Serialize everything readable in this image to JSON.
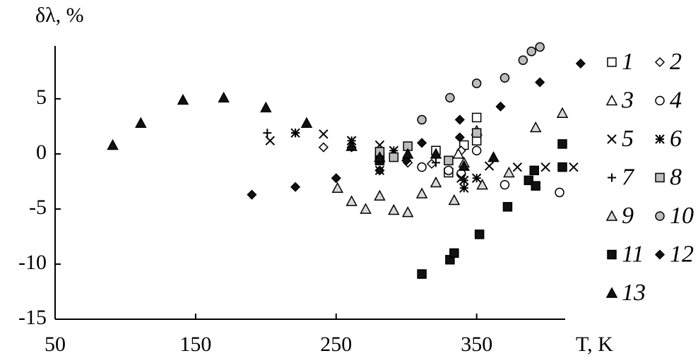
{
  "chart_data": {
    "type": "scatter",
    "ylabel": "δλ, %",
    "xlabel": "T, K",
    "xlim": [
      50,
      413
    ],
    "ylim": [
      -15,
      9.8
    ],
    "xticks": [
      50,
      150,
      250,
      350
    ],
    "yticks": [
      -15,
      -10,
      -5,
      0,
      5
    ],
    "legend": "right",
    "series": [
      {
        "name": "1",
        "marker": "square",
        "color": "#ffffff",
        "x": [
          281,
          321,
          330,
          341,
          350,
          350
        ],
        "values": [
          -0.3,
          0.3,
          -1.7,
          0.8,
          3.3,
          1.2
        ]
      },
      {
        "name": "2",
        "marker": "diamond",
        "color": "#ffffff",
        "x": [
          241,
          301,
          318,
          339
        ],
        "values": [
          0.6,
          -0.8,
          -0.9,
          0.3
        ]
      },
      {
        "name": "3",
        "marker": "triangle",
        "color": "#ffffff",
        "x": [
          337,
          341,
          350
        ],
        "values": [
          0,
          -0.8,
          2.1
        ]
      },
      {
        "name": "4",
        "marker": "circle",
        "color": "#ffffff",
        "x": [
          311,
          330,
          339,
          350,
          370,
          409
        ],
        "values": [
          -1.2,
          -1.5,
          -1.8,
          0.3,
          -2.8,
          -3.5
        ]
      },
      {
        "name": "5",
        "marker": "x",
        "color": "#000000",
        "x": [
          203,
          241,
          261,
          281,
          291,
          339,
          359,
          379,
          399,
          419
        ],
        "values": [
          1.2,
          1.8,
          1.2,
          0.8,
          0.3,
          -2.2,
          -1.1,
          -1.2,
          -1.2,
          -1.2
        ]
      },
      {
        "name": "6",
        "marker": "asterisk",
        "color": "#000000",
        "x": [
          221,
          261,
          281,
          341,
          341,
          350
        ],
        "values": [
          1.9,
          1.2,
          -1.5,
          -3.1,
          -2.4,
          -2.2
        ]
      },
      {
        "name": "7",
        "marker": "plus",
        "color": "#000000",
        "x": [
          201,
          221,
          291,
          321
        ],
        "values": [
          1.9,
          1.9,
          0.3,
          -0.8
        ]
      },
      {
        "name": "8",
        "marker": "square",
        "color": "#bdbdbd",
        "x": [
          281,
          291,
          301,
          330,
          350
        ],
        "values": [
          0.2,
          -0.3,
          0.7,
          -0.6,
          1.9
        ]
      },
      {
        "name": "9",
        "marker": "triangle",
        "color": "#d9d9d9",
        "x": [
          251,
          261,
          271,
          281,
          291,
          301,
          311,
          321,
          334,
          354,
          373,
          392,
          411
        ],
        "values": [
          -3.1,
          -4.3,
          -5.0,
          -3.8,
          -5.1,
          -5.3,
          -3.6,
          -2.6,
          -4.2,
          -2.8,
          -1.7,
          2.4,
          3.7
        ]
      },
      {
        "name": "10",
        "marker": "circle",
        "color": "#bdbdbd",
        "x": [
          311,
          331,
          350,
          370,
          383,
          389,
          395
        ],
        "values": [
          3.1,
          5.1,
          6.4,
          6.9,
          8.5,
          9.3,
          9.7
        ]
      },
      {
        "name": "11",
        "marker": "square",
        "color": "#111111",
        "x": [
          281,
          311,
          331,
          334,
          352,
          372,
          387,
          391,
          392,
          411,
          411
        ],
        "values": [
          -0.6,
          -10.9,
          -9.6,
          -9.0,
          -7.3,
          -4.8,
          -2.4,
          -1.5,
          -2.9,
          -1.2,
          0.9
        ]
      },
      {
        "name": "12",
        "marker": "diamond",
        "color": "#111111",
        "x": [
          190,
          221,
          250,
          261,
          281,
          300,
          311,
          338,
          338,
          367,
          395,
          424
        ],
        "values": [
          -3.7,
          -3.0,
          -2.2,
          0.6,
          -1.5,
          -0.6,
          1.0,
          3.1,
          1.5,
          4.3,
          6.5,
          8.2
        ]
      },
      {
        "name": "13",
        "marker": "triangle",
        "color": "#111111",
        "x": [
          91,
          111,
          141,
          170,
          200,
          229,
          261,
          281,
          301,
          321,
          341,
          362
        ],
        "values": [
          0.8,
          2.8,
          4.9,
          5.1,
          4.2,
          2.8,
          0.7,
          -0.3,
          0,
          0,
          -1.1,
          -0.3
        ]
      }
    ]
  }
}
